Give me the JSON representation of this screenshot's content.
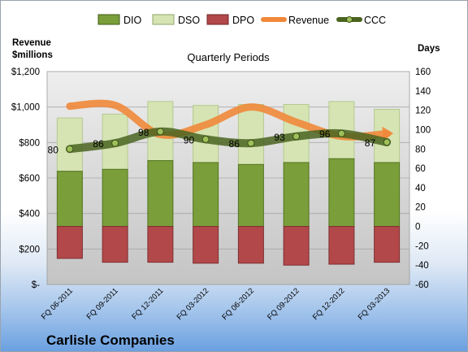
{
  "chart_data": {
    "type": "bar",
    "title": "Quarterly Periods",
    "company": "Carlisle Companies",
    "left_axis_label_line1": "Revenue",
    "left_axis_label_line2": "$millions",
    "right_axis_label": "Days",
    "categories": [
      "FQ 06-2011",
      "FQ 09-2011",
      "FQ 12-2011",
      "FQ 03-2012",
      "FQ 06-2012",
      "FQ 09-2012",
      "FQ 12-2012",
      "FQ 03-2013"
    ],
    "left_ylim": [
      0,
      1200
    ],
    "left_ticks": [
      "$-",
      "$200",
      "$400",
      "$600",
      "$800",
      "$1,000",
      "$1,200"
    ],
    "left_tick_values": [
      0,
      200,
      400,
      600,
      800,
      1000,
      1200
    ],
    "right_ylim": [
      -60,
      160
    ],
    "right_ticks": [
      "-60",
      "-40",
      "-20",
      "0",
      "20",
      "40",
      "60",
      "80",
      "100",
      "120",
      "140",
      "160"
    ],
    "right_tick_values": [
      -60,
      -40,
      -20,
      0,
      20,
      40,
      60,
      80,
      100,
      120,
      140,
      160
    ],
    "legend": [
      "DIO",
      "DSO",
      "DPO",
      "Revenue",
      "CCC"
    ],
    "series": [
      {
        "name": "DIO",
        "axis": "right",
        "kind": "bar",
        "color": "#7a9e3a",
        "values": [
          57,
          59,
          68,
          66,
          64,
          66,
          70,
          66
        ]
      },
      {
        "name": "DSO",
        "axis": "right",
        "kind": "bar",
        "color": "#d6e4b4",
        "values": [
          55,
          57,
          61,
          59,
          62,
          60,
          59,
          55
        ]
      },
      {
        "name": "DPO",
        "axis": "right",
        "kind": "bar",
        "color": "#b2484a",
        "values": [
          -33,
          -37,
          -37,
          -38,
          -38,
          -40,
          -39,
          -37
        ]
      },
      {
        "name": "Revenue",
        "axis": "left",
        "kind": "line",
        "color": "#f0883a",
        "values": [
          1005,
          1010,
          845,
          900,
          1000,
          915,
          835,
          850
        ]
      },
      {
        "name": "CCC",
        "axis": "right",
        "kind": "line",
        "color": "#4a6420",
        "values": [
          80,
          86,
          98,
          90,
          86,
          93,
          96,
          87
        ]
      }
    ],
    "ccc_labels": [
      "80",
      "86",
      "98",
      "90",
      "86",
      "93",
      "96",
      "87"
    ],
    "grid": true,
    "legend_position": "top"
  }
}
